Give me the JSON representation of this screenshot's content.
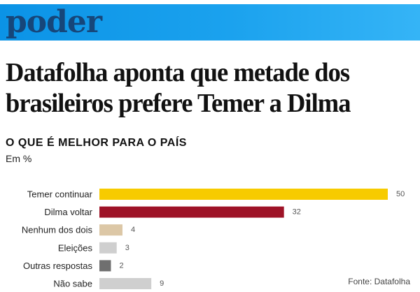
{
  "section": {
    "name": "poder",
    "color": "#16467a",
    "banner_color": "#1ba2ee"
  },
  "headline": "Datafolha aponta que metade dos brasileiros prefere Temer a Dilma",
  "chart_data": {
    "type": "bar",
    "orientation": "horizontal",
    "title": "O QUE É MELHOR PARA O PAÍS",
    "subtitle": "Em %",
    "categories": [
      "Temer continuar",
      "Dilma voltar",
      "Nenhum dos dois",
      "Eleições",
      "Outras respostas",
      "Não sabe"
    ],
    "values": [
      50,
      32,
      4,
      3,
      2,
      9
    ],
    "colors": [
      "#f7cb00",
      "#9e1327",
      "#dcc7a6",
      "#cfcfcf",
      "#6f6f6f",
      "#cfcfcf"
    ],
    "xlim": [
      0,
      50
    ],
    "grid": false,
    "legend": "none"
  },
  "source": "Fonte: Datafolha"
}
